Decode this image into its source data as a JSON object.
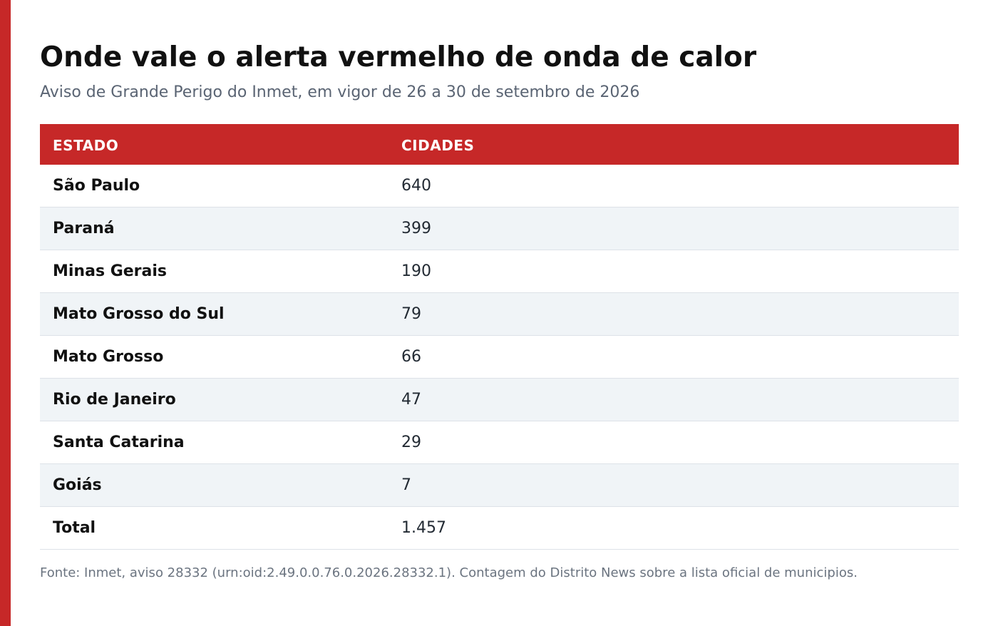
{
  "colors": {
    "accent": "#c62828",
    "stripe": "#f0f4f7",
    "title": "#111111",
    "subtitle": "#5a6473"
  },
  "article": {
    "title": "Onde vale o alerta vermelho de onda de calor",
    "subtitle": "Aviso de Grande Perigo do Inmet, em vigor de 26 a 30 de setembro de 2026"
  },
  "table": {
    "headers": [
      "ESTADO",
      "CIDADES"
    ],
    "rows": [
      {
        "estado": "São Paulo",
        "cidades": "640"
      },
      {
        "estado": "Paraná",
        "cidades": "399"
      },
      {
        "estado": "Minas Gerais",
        "cidades": "190"
      },
      {
        "estado": "Mato Grosso do Sul",
        "cidades": "79"
      },
      {
        "estado": "Mato Grosso",
        "cidades": "66"
      },
      {
        "estado": "Rio de Janeiro",
        "cidades": "47"
      },
      {
        "estado": "Santa Catarina",
        "cidades": "29"
      },
      {
        "estado": "Goiás",
        "cidades": "7"
      },
      {
        "estado": "Total",
        "cidades": "1.457"
      }
    ]
  },
  "source": "Fonte: Inmet, aviso 28332 (urn:oid:2.49.0.0.76.0.2026.28332.1). Contagem do Distrito News sobre a lista oficial de municipios."
}
